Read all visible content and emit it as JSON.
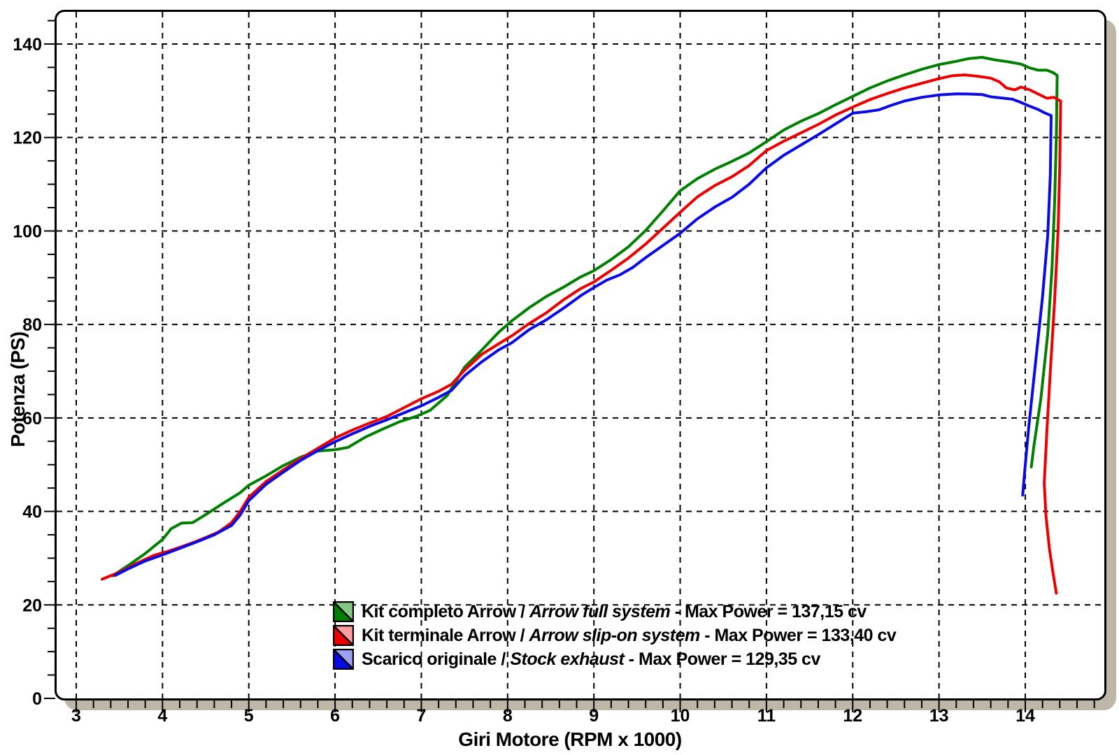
{
  "chart_data": {
    "type": "line",
    "title": "",
    "xlabel": "Giri Motore (RPM x 1000)",
    "ylabel": "Potenza (PS)",
    "x_ticks": [
      3,
      4,
      5,
      6,
      7,
      8,
      9,
      10,
      11,
      12,
      13,
      14
    ],
    "y_ticks": [
      0,
      20,
      40,
      60,
      80,
      100,
      120,
      140
    ],
    "x_minor_step": 0.2,
    "y_minor_step": 5,
    "xlim": [
      2.76,
      14.94
    ],
    "ylim": [
      0,
      146.9
    ],
    "grid": "dashed",
    "legend_position": "inside-bottom-center",
    "series": [
      {
        "id": "kit-completo-arrow",
        "name": "Kit completo Arrow / Arrow full system",
        "color": "#008000",
        "tint": "#84c884",
        "max_power_ps": "137,15",
        "legend_prefix": "Kit completo Arrow / ",
        "legend_italic": "Arrow full system",
        "legend_tail": " - Max Power = 137,15 cv",
        "points": [
          [
            3.42,
            26.2
          ],
          [
            3.6,
            28.4
          ],
          [
            3.8,
            31.0
          ],
          [
            4.0,
            34.0
          ],
          [
            4.1,
            36.3
          ],
          [
            4.22,
            37.5
          ],
          [
            4.35,
            37.6
          ],
          [
            4.5,
            39.3
          ],
          [
            4.7,
            41.7
          ],
          [
            4.9,
            44.0
          ],
          [
            5.0,
            45.6
          ],
          [
            5.2,
            47.6
          ],
          [
            5.4,
            49.8
          ],
          [
            5.6,
            51.6
          ],
          [
            5.8,
            52.9
          ],
          [
            6.0,
            53.2
          ],
          [
            6.15,
            53.7
          ],
          [
            6.35,
            55.9
          ],
          [
            6.55,
            57.6
          ],
          [
            6.75,
            59.2
          ],
          [
            6.95,
            60.4
          ],
          [
            7.1,
            61.6
          ],
          [
            7.3,
            64.8
          ],
          [
            7.5,
            70.8
          ],
          [
            7.7,
            74.5
          ],
          [
            7.9,
            78.4
          ],
          [
            8.05,
            80.8
          ],
          [
            8.25,
            83.6
          ],
          [
            8.45,
            86.0
          ],
          [
            8.65,
            88.0
          ],
          [
            8.85,
            90.2
          ],
          [
            9.0,
            91.5
          ],
          [
            9.2,
            93.9
          ],
          [
            9.4,
            96.6
          ],
          [
            9.6,
            100.1
          ],
          [
            9.8,
            104.3
          ],
          [
            10.0,
            108.6
          ],
          [
            10.2,
            111.2
          ],
          [
            10.4,
            113.2
          ],
          [
            10.6,
            114.9
          ],
          [
            10.8,
            116.7
          ],
          [
            11.0,
            119.1
          ],
          [
            11.2,
            121.6
          ],
          [
            11.4,
            123.5
          ],
          [
            11.6,
            125.1
          ],
          [
            11.8,
            127.0
          ],
          [
            12.0,
            128.8
          ],
          [
            12.2,
            130.6
          ],
          [
            12.4,
            132.1
          ],
          [
            12.6,
            133.4
          ],
          [
            12.8,
            134.6
          ],
          [
            13.0,
            135.6
          ],
          [
            13.2,
            136.3
          ],
          [
            13.35,
            136.9
          ],
          [
            13.5,
            137.15
          ],
          [
            13.65,
            136.6
          ],
          [
            13.8,
            136.2
          ],
          [
            13.95,
            135.7
          ],
          [
            14.05,
            134.9
          ],
          [
            14.15,
            134.4
          ],
          [
            14.25,
            134.4
          ],
          [
            14.32,
            133.9
          ],
          [
            14.37,
            133.3
          ],
          [
            14.36,
            120
          ],
          [
            14.34,
            106
          ],
          [
            14.31,
            92
          ],
          [
            14.26,
            78
          ],
          [
            14.18,
            64
          ],
          [
            14.1,
            54
          ],
          [
            14.07,
            49.5
          ]
        ]
      },
      {
        "id": "kit-terminale-arrow",
        "name": "Kit terminale Arrow / Arrow slip-on system",
        "color": "#ee0000",
        "tint": "#ff9c9c",
        "max_power_ps": "133,40",
        "legend_prefix": "Kit terminale Arrow / ",
        "legend_italic": "Arrow slip-on system",
        "legend_tail": " - Max Power = 133,40 cv",
        "points": [
          [
            3.3,
            25.5
          ],
          [
            3.5,
            27.0
          ],
          [
            3.7,
            28.9
          ],
          [
            3.9,
            30.6
          ],
          [
            4.05,
            31.4
          ],
          [
            4.2,
            32.3
          ],
          [
            4.35,
            33.3
          ],
          [
            4.5,
            34.4
          ],
          [
            4.65,
            35.6
          ],
          [
            4.8,
            37.6
          ],
          [
            4.9,
            40.0
          ],
          [
            5.0,
            43.0
          ],
          [
            5.2,
            46.4
          ],
          [
            5.4,
            48.9
          ],
          [
            5.6,
            51.3
          ],
          [
            5.8,
            53.5
          ],
          [
            6.0,
            55.7
          ],
          [
            6.2,
            57.4
          ],
          [
            6.4,
            58.9
          ],
          [
            6.6,
            60.3
          ],
          [
            6.8,
            62.2
          ],
          [
            7.0,
            64.1
          ],
          [
            7.2,
            65.7
          ],
          [
            7.35,
            67.2
          ],
          [
            7.5,
            70.2
          ],
          [
            7.7,
            73.6
          ],
          [
            7.9,
            75.9
          ],
          [
            8.05,
            77.6
          ],
          [
            8.25,
            80.2
          ],
          [
            8.45,
            82.5
          ],
          [
            8.65,
            85.3
          ],
          [
            8.85,
            87.7
          ],
          [
            9.0,
            89.1
          ],
          [
            9.2,
            91.6
          ],
          [
            9.4,
            94.2
          ],
          [
            9.6,
            97.2
          ],
          [
            9.8,
            100.6
          ],
          [
            10.0,
            104.0
          ],
          [
            10.2,
            107.3
          ],
          [
            10.4,
            109.7
          ],
          [
            10.6,
            111.6
          ],
          [
            10.8,
            114.0
          ],
          [
            11.0,
            117.2
          ],
          [
            11.2,
            119.2
          ],
          [
            11.4,
            121.0
          ],
          [
            11.6,
            122.8
          ],
          [
            11.8,
            124.8
          ],
          [
            12.0,
            126.5
          ],
          [
            12.2,
            128.1
          ],
          [
            12.4,
            129.4
          ],
          [
            12.6,
            130.6
          ],
          [
            12.8,
            131.6
          ],
          [
            13.0,
            132.6
          ],
          [
            13.15,
            133.2
          ],
          [
            13.3,
            133.4
          ],
          [
            13.45,
            133.1
          ],
          [
            13.6,
            132.7
          ],
          [
            13.7,
            131.9
          ],
          [
            13.78,
            130.6
          ],
          [
            13.88,
            130.2
          ],
          [
            13.95,
            130.8
          ],
          [
            14.05,
            130.2
          ],
          [
            14.15,
            129.3
          ],
          [
            14.25,
            128.4
          ],
          [
            14.33,
            128.6
          ],
          [
            14.41,
            127.8
          ],
          [
            14.4,
            114
          ],
          [
            14.38,
            100
          ],
          [
            14.34,
            85
          ],
          [
            14.29,
            70
          ],
          [
            14.25,
            57
          ],
          [
            14.22,
            46
          ],
          [
            14.24,
            39
          ],
          [
            14.28,
            32
          ],
          [
            14.32,
            27
          ],
          [
            14.36,
            22.5
          ]
        ]
      },
      {
        "id": "scarico-originale",
        "name": "Scarico originale / Stock exhaust",
        "color": "#0a0ae8",
        "tint": "#9aa0f2",
        "max_power_ps": "129,35",
        "legend_prefix": "Scarico originale / ",
        "legend_italic": "Stock exhaust",
        "legend_tail": " - Max Power = 129,35 cv",
        "points": [
          [
            3.45,
            26.3
          ],
          [
            3.6,
            27.7
          ],
          [
            3.8,
            29.4
          ],
          [
            4.0,
            30.7
          ],
          [
            4.2,
            32.1
          ],
          [
            4.4,
            33.5
          ],
          [
            4.6,
            35.0
          ],
          [
            4.8,
            37.0
          ],
          [
            4.9,
            39.2
          ],
          [
            5.0,
            42.3
          ],
          [
            5.2,
            45.8
          ],
          [
            5.4,
            48.4
          ],
          [
            5.6,
            50.9
          ],
          [
            5.8,
            53.0
          ],
          [
            6.0,
            54.9
          ],
          [
            6.2,
            56.6
          ],
          [
            6.4,
            58.2
          ],
          [
            6.6,
            59.6
          ],
          [
            6.8,
            61.1
          ],
          [
            7.0,
            62.6
          ],
          [
            7.2,
            64.4
          ],
          [
            7.35,
            65.9
          ],
          [
            7.5,
            69.0
          ],
          [
            7.7,
            72.0
          ],
          [
            7.9,
            74.6
          ],
          [
            8.05,
            76.1
          ],
          [
            8.25,
            78.9
          ],
          [
            8.45,
            81.0
          ],
          [
            8.65,
            83.5
          ],
          [
            8.85,
            86.2
          ],
          [
            9.0,
            87.9
          ],
          [
            9.15,
            89.5
          ],
          [
            9.3,
            90.6
          ],
          [
            9.45,
            92.2
          ],
          [
            9.6,
            94.3
          ],
          [
            9.8,
            96.9
          ],
          [
            10.0,
            99.5
          ],
          [
            10.2,
            102.6
          ],
          [
            10.4,
            105.1
          ],
          [
            10.6,
            107.2
          ],
          [
            10.8,
            110.0
          ],
          [
            11.0,
            113.5
          ],
          [
            11.2,
            116.2
          ],
          [
            11.4,
            118.4
          ],
          [
            11.6,
            120.6
          ],
          [
            11.8,
            122.9
          ],
          [
            12.0,
            125.2
          ],
          [
            12.15,
            125.5
          ],
          [
            12.3,
            125.9
          ],
          [
            12.45,
            126.9
          ],
          [
            12.6,
            127.8
          ],
          [
            12.8,
            128.6
          ],
          [
            13.0,
            129.1
          ],
          [
            13.2,
            129.35
          ],
          [
            13.35,
            129.3
          ],
          [
            13.5,
            129.2
          ],
          [
            13.6,
            128.7
          ],
          [
            13.75,
            128.4
          ],
          [
            13.85,
            128.2
          ],
          [
            13.95,
            127.5
          ],
          [
            14.05,
            126.7
          ],
          [
            14.15,
            126.0
          ],
          [
            14.22,
            125.3
          ],
          [
            14.3,
            124.7
          ],
          [
            14.29,
            112
          ],
          [
            14.26,
            99
          ],
          [
            14.2,
            86
          ],
          [
            14.12,
            72
          ],
          [
            14.04,
            58
          ],
          [
            13.99,
            48
          ],
          [
            13.97,
            43.5
          ]
        ]
      }
    ]
  }
}
